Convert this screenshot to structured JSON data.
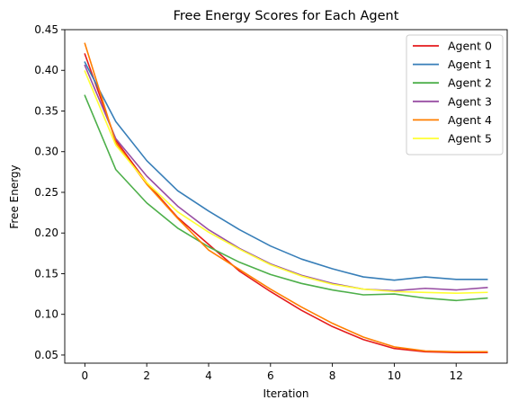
{
  "chart_data": {
    "type": "line",
    "title": "Free Energy Scores for Each Agent",
    "xlabel": "Iteration",
    "ylabel": "Free Energy",
    "xlim": [
      -0.65,
      13.65
    ],
    "ylim": [
      0.04,
      0.45
    ],
    "xticks": [
      0,
      2,
      4,
      6,
      8,
      10,
      12
    ],
    "yticks": [
      0.05,
      0.1,
      0.15,
      0.2,
      0.25,
      0.3,
      0.35,
      0.4,
      0.45
    ],
    "grid": false,
    "legend_position": "top-right",
    "x": [
      0,
      1,
      2,
      3,
      4,
      5,
      6,
      7,
      8,
      9,
      10,
      11,
      12,
      13
    ],
    "series": [
      {
        "name": "Agent 0",
        "color": "#e41a1c",
        "values": [
          0.42,
          0.314,
          0.262,
          0.219,
          0.186,
          0.153,
          0.128,
          0.105,
          0.085,
          0.069,
          0.058,
          0.054,
          0.053,
          0.053
        ]
      },
      {
        "name": "Agent 1",
        "color": "#377eb8",
        "values": [
          0.41,
          0.337,
          0.289,
          0.252,
          0.227,
          0.204,
          0.184,
          0.168,
          0.156,
          0.146,
          0.142,
          0.146,
          0.143,
          0.143
        ]
      },
      {
        "name": "Agent 2",
        "color": "#4daf4a",
        "values": [
          0.369,
          0.278,
          0.237,
          0.206,
          0.183,
          0.164,
          0.149,
          0.138,
          0.13,
          0.124,
          0.125,
          0.12,
          0.117,
          0.12
        ]
      },
      {
        "name": "Agent 3",
        "color": "#984ea3",
        "values": [
          0.406,
          0.316,
          0.27,
          0.233,
          0.204,
          0.181,
          0.162,
          0.148,
          0.138,
          0.131,
          0.129,
          0.132,
          0.13,
          0.133
        ]
      },
      {
        "name": "Agent 4",
        "color": "#ff7f00",
        "values": [
          0.433,
          0.311,
          0.26,
          0.218,
          0.179,
          0.155,
          0.131,
          0.109,
          0.089,
          0.072,
          0.06,
          0.055,
          0.054,
          0.054
        ]
      },
      {
        "name": "Agent 5",
        "color": "#ffff33",
        "values": [
          0.399,
          0.308,
          0.262,
          0.226,
          0.201,
          0.18,
          0.161,
          0.147,
          0.137,
          0.131,
          0.128,
          0.127,
          0.126,
          0.127
        ]
      }
    ]
  }
}
